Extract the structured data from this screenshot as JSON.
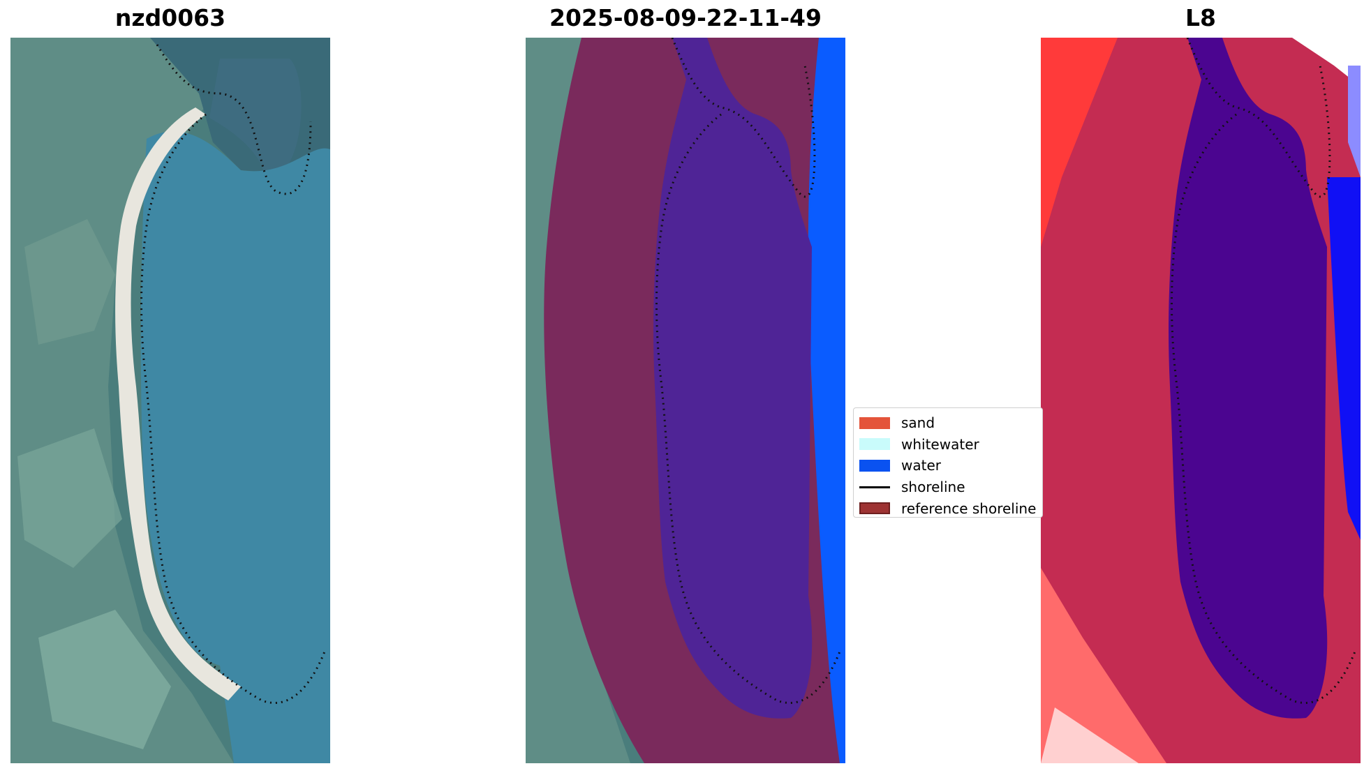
{
  "panels": [
    {
      "title": "nzd0063",
      "kind": "rgb"
    },
    {
      "title": "2025-08-09-22-11-49",
      "kind": "classified"
    },
    {
      "title": "L8",
      "kind": "index"
    }
  ],
  "legend": {
    "items": [
      {
        "label": "sand",
        "type": "patch",
        "color": "#e4543a"
      },
      {
        "label": "whitewater",
        "type": "patch",
        "color": "#c9fbfb"
      },
      {
        "label": "water",
        "type": "patch",
        "color": "#0a52f0"
      },
      {
        "label": "shoreline",
        "type": "line",
        "color": "#000000"
      },
      {
        "label": "reference shoreline",
        "type": "patch",
        "color": "#9e3333",
        "edge": "#6e1f1f"
      }
    ]
  },
  "colors": {
    "land_base": "#4a7d7c",
    "land_vegetation": "#5e9a8a",
    "bay_water": "#3f88a4",
    "beach_sand": "#e8e6de",
    "buffer_overlay": "#7a2a5c",
    "classified_water": "#4f2496",
    "ocean_water": "#0a5cff",
    "index_land": "#c42c52",
    "index_water": "#4b0590",
    "index_ocean": "#1010f5",
    "index_edge": "#ff3030"
  }
}
